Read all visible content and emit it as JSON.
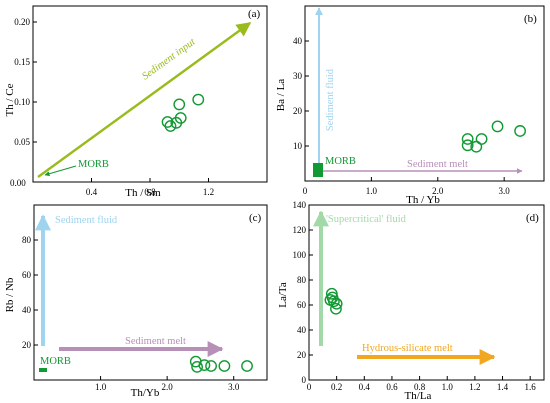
{
  "chart_data": [
    {
      "id": "a",
      "type": "scatter",
      "panel_label": "(a)",
      "xlabel": "Th / Sm",
      "ylabel": "Th / Ce",
      "xlim": [
        0,
        1.6
      ],
      "ylim": [
        0,
        0.22
      ],
      "xticks": [
        0.4,
        0.8,
        1.2
      ],
      "xtick_labels": [
        "0.4",
        "0.8",
        "1.2"
      ],
      "yticks": [
        0.05,
        0.1,
        0.15,
        0.2
      ],
      "ytick_labels": [
        "0.05",
        "0.10",
        "0.15",
        "0.20"
      ],
      "origin_label": "0.00",
      "points": [
        {
          "x": 0.92,
          "y": 0.075
        },
        {
          "x": 0.94,
          "y": 0.07
        },
        {
          "x": 0.98,
          "y": 0.074
        },
        {
          "x": 1.01,
          "y": 0.08
        },
        {
          "x": 1.0,
          "y": 0.097
        },
        {
          "x": 1.13,
          "y": 0.103
        }
      ],
      "annotations": [
        {
          "text": "Sediment input",
          "color": "#99bb1b"
        },
        {
          "text": "MORB",
          "color": "#119933"
        }
      ]
    },
    {
      "id": "b",
      "type": "scatter",
      "panel_label": "(b)",
      "xlabel": "Th / Yb",
      "ylabel": "Ba / La",
      "xlim": [
        0,
        3.6
      ],
      "ylim": [
        0,
        50
      ],
      "xticks": [
        0,
        1,
        2,
        3
      ],
      "xtick_labels": [
        "0",
        "1.0",
        "2.0",
        "3.0"
      ],
      "yticks": [
        10,
        20,
        30,
        40
      ],
      "ytick_labels": [
        "10",
        "20",
        "30",
        "40"
      ],
      "points": [
        {
          "x": 2.45,
          "y": 12.0
        },
        {
          "x": 2.45,
          "y": 10.2
        },
        {
          "x": 2.58,
          "y": 9.8
        },
        {
          "x": 2.66,
          "y": 12.0
        },
        {
          "x": 2.9,
          "y": 15.6
        },
        {
          "x": 3.24,
          "y": 14.3
        }
      ],
      "annotations": [
        {
          "text": "Sediment fluid",
          "color": "#9fd4ee"
        },
        {
          "text": "Sediment melt",
          "color": "#b790b8"
        },
        {
          "text": "MORB",
          "color": "#119933"
        }
      ]
    },
    {
      "id": "c",
      "type": "scatter",
      "panel_label": "(c)",
      "xlabel": "Th/Yb",
      "ylabel": "Rb / Nb",
      "xlim": [
        0,
        3.5
      ],
      "ylim": [
        0,
        100
      ],
      "xticks": [
        1,
        2,
        3
      ],
      "xtick_labels": [
        "1.0",
        "2.0",
        "3.0"
      ],
      "yticks": [
        20,
        40,
        60,
        80
      ],
      "ytick_labels": [
        "20",
        "40",
        "60",
        "80"
      ],
      "points": [
        {
          "x": 2.43,
          "y": 10.5
        },
        {
          "x": 2.45,
          "y": 7.5
        },
        {
          "x": 2.56,
          "y": 8.5
        },
        {
          "x": 2.66,
          "y": 8.0
        },
        {
          "x": 2.86,
          "y": 8.0
        },
        {
          "x": 3.2,
          "y": 8.0
        }
      ],
      "annotations": [
        {
          "text": "Sediment fluid",
          "color": "#9fd4ee"
        },
        {
          "text": "Sediment melt",
          "color": "#b790b8"
        },
        {
          "text": "MORB",
          "color": "#119933"
        }
      ]
    },
    {
      "id": "d",
      "type": "scatter",
      "panel_label": "(d)",
      "xlabel": "Th/La",
      "ylabel": "La/Ta",
      "xlim": [
        0,
        1.7
      ],
      "ylim": [
        0,
        140
      ],
      "xticks": [
        0,
        0.2,
        0.4,
        0.6,
        0.8,
        1.0,
        1.2,
        1.4,
        1.6
      ],
      "xtick_labels": [
        "0",
        "0.2",
        "0.4",
        "0.6",
        "0.8",
        "1.0",
        "1.2",
        "1.4",
        "1.6"
      ],
      "yticks": [
        0,
        20,
        40,
        60,
        80,
        100,
        120,
        140
      ],
      "ytick_labels": [
        "0",
        "20",
        "40",
        "60",
        "80",
        "100",
        "120",
        "140"
      ],
      "points": [
        {
          "x": 0.165,
          "y": 69
        },
        {
          "x": 0.17,
          "y": 66
        },
        {
          "x": 0.18,
          "y": 63
        },
        {
          "x": 0.2,
          "y": 61
        },
        {
          "x": 0.195,
          "y": 57
        },
        {
          "x": 0.155,
          "y": 64
        }
      ],
      "annotations": [
        {
          "text": "'Supercritical' fluid",
          "color": "#a3d9a8"
        },
        {
          "text": "Hydrous-silicate melt",
          "color": "#f2a720"
        }
      ]
    }
  ],
  "colors": {
    "marker": "#119933",
    "sediment_input": "#99bb1b",
    "sediment_fluid": "#9fd4ee",
    "sediment_melt": "#b790b8",
    "supercritical_fluid": "#a3d9a8",
    "hydrous_melt": "#f2a720",
    "morb": "#119933"
  }
}
